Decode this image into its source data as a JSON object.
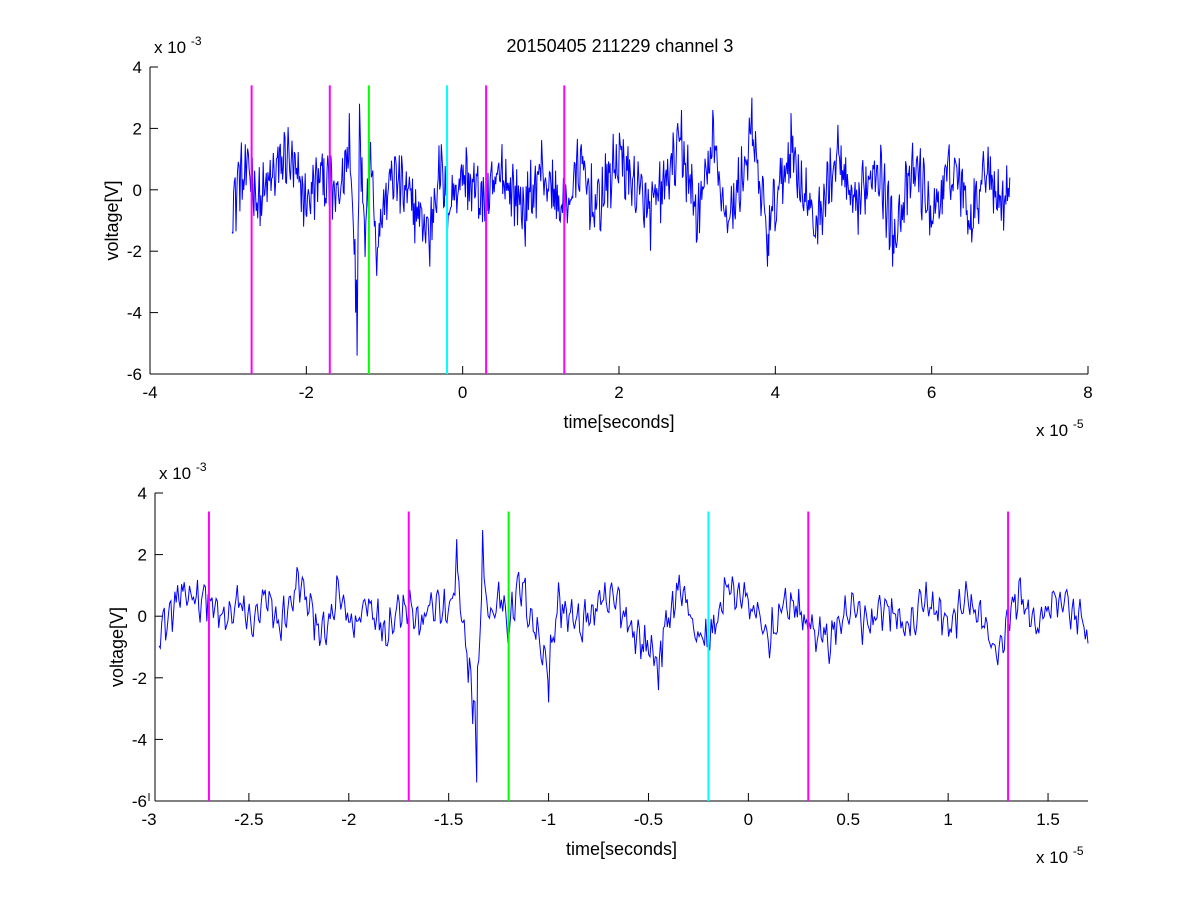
{
  "title": "20150405 211229 channel 3",
  "colors": {
    "signal": "#0000ff",
    "magenta": "#ff00ff",
    "green": "#00ff00",
    "cyan": "#00ffff",
    "axes": "#000000"
  },
  "chart_data": [
    {
      "type": "line",
      "xlabel": "time[seconds]",
      "ylabel": "voltage[V]",
      "x_exponent_label": "x 10",
      "x_exponent": "-5",
      "y_exponent_label": "x 10",
      "y_exponent": "-3",
      "x_scale": 1e-05,
      "y_scale": 0.001,
      "xlim": [
        -4,
        8
      ],
      "ylim": [
        -6,
        4
      ],
      "x_ticks": [
        -4,
        -2,
        0,
        2,
        4,
        6,
        8
      ],
      "x_tick_labels": [
        "-4",
        "-2",
        "0",
        "2",
        "4",
        "6",
        "8"
      ],
      "y_ticks": [
        -6,
        -4,
        -2,
        0,
        2,
        4
      ],
      "y_tick_labels": [
        "-6",
        "-4",
        "-2",
        "0",
        "2",
        "4"
      ],
      "grid": false,
      "signal_range": [
        -2.95,
        7.0
      ],
      "vertical_markers": [
        {
          "x": -2.7,
          "color": "magenta",
          "y_top": 3.4
        },
        {
          "x": -1.7,
          "color": "magenta",
          "y_top": 3.4
        },
        {
          "x": -1.2,
          "color": "green",
          "y_top": 3.4
        },
        {
          "x": -0.2,
          "color": "cyan",
          "y_top": 3.4
        },
        {
          "x": 0.3,
          "color": "magenta",
          "y_top": 3.4
        },
        {
          "x": 1.3,
          "color": "magenta",
          "y_top": 3.4
        }
      ],
      "signal_anchors": [
        [
          -2.95,
          -0.5
        ],
        [
          -2.9,
          -0.6
        ],
        [
          -2.87,
          0.9
        ],
        [
          -2.8,
          0.5
        ],
        [
          -2.72,
          1.2
        ],
        [
          -2.6,
          -0.8
        ],
        [
          -2.4,
          1.0
        ],
        [
          -2.25,
          2.1
        ],
        [
          -2.0,
          -0.8
        ],
        [
          -1.8,
          1.0
        ],
        [
          -1.6,
          -0.7
        ],
        [
          -1.45,
          2.5
        ],
        [
          -1.4,
          -2.0
        ],
        [
          -1.37,
          -4.0
        ],
        [
          -1.35,
          -5.4
        ],
        [
          -1.32,
          2.8
        ],
        [
          -1.25,
          -2.0
        ],
        [
          -1.18,
          2.2
        ],
        [
          -1.1,
          -2.8
        ],
        [
          -0.9,
          1.0
        ],
        [
          -0.7,
          -0.5
        ],
        [
          -0.42,
          -2.5
        ],
        [
          -0.3,
          1.5
        ],
        [
          -0.2,
          -1.0
        ],
        [
          0.0,
          1.0
        ],
        [
          0.3,
          -0.9
        ],
        [
          0.5,
          1.0
        ],
        [
          0.8,
          -1.2
        ],
        [
          1.0,
          1.2
        ],
        [
          1.3,
          -1.4
        ],
        [
          1.5,
          1.5
        ],
        [
          1.7,
          -1.3
        ],
        [
          2.0,
          2.0
        ],
        [
          2.4,
          -1.5
        ],
        [
          2.8,
          2.6
        ],
        [
          3.0,
          -1.7
        ],
        [
          3.2,
          2.6
        ],
        [
          3.4,
          -2.0
        ],
        [
          3.7,
          3.0
        ],
        [
          3.9,
          -2.5
        ],
        [
          4.2,
          2.5
        ],
        [
          4.5,
          -2.2
        ],
        [
          4.8,
          2.0
        ],
        [
          5.0,
          -1.5
        ],
        [
          5.3,
          1.9
        ],
        [
          5.5,
          -2.5
        ],
        [
          5.8,
          1.3
        ],
        [
          6.0,
          -1.5
        ],
        [
          6.3,
          1.5
        ],
        [
          6.5,
          -1.7
        ],
        [
          6.7,
          1.7
        ],
        [
          6.9,
          -0.8
        ],
        [
          7.0,
          0.5
        ]
      ]
    },
    {
      "type": "line",
      "xlabel": "time[seconds]",
      "ylabel": "voltage[V]",
      "x_exponent_label": "x 10",
      "x_exponent": "-5",
      "y_exponent_label": "x 10",
      "y_exponent": "-3",
      "x_scale": 1e-05,
      "y_scale": 0.001,
      "xlim": [
        -2.97,
        1.7
      ],
      "ylim": [
        -6,
        4
      ],
      "x_ticks": [
        -3,
        -2.5,
        -2,
        -1.5,
        -1,
        -0.5,
        0,
        0.5,
        1,
        1.5
      ],
      "x_tick_labels": [
        "-3",
        "-2.5",
        "-2",
        "-1.5",
        "-1",
        "-0.5",
        "0",
        "0.5",
        "1",
        "1.5"
      ],
      "y_ticks": [
        -6,
        -4,
        -2,
        0,
        2,
        4
      ],
      "y_tick_labels": [
        "-6",
        "-4",
        "-2",
        "0",
        "2",
        "4"
      ],
      "grid": false,
      "signal_range": [
        -2.95,
        1.7
      ],
      "vertical_markers": [
        {
          "x": -2.7,
          "color": "magenta",
          "y_top": 3.4
        },
        {
          "x": -1.7,
          "color": "magenta",
          "y_top": 3.4
        },
        {
          "x": -1.2,
          "color": "green",
          "y_top": 3.4
        },
        {
          "x": -0.2,
          "color": "cyan",
          "y_top": 3.4
        },
        {
          "x": 0.3,
          "color": "magenta",
          "y_top": 3.4
        },
        {
          "x": 1.3,
          "color": "magenta",
          "y_top": 3.4
        }
      ],
      "signal_anchors": [
        [
          -2.95,
          -0.5
        ],
        [
          -2.93,
          -0.6
        ],
        [
          -2.88,
          0.3
        ],
        [
          -2.85,
          1.4
        ],
        [
          -2.82,
          0.8
        ],
        [
          -2.78,
          1.5
        ],
        [
          -2.75,
          1.0
        ],
        [
          -2.72,
          1.3
        ],
        [
          -2.68,
          0.5
        ],
        [
          -2.62,
          -0.4
        ],
        [
          -2.55,
          0.8
        ],
        [
          -2.48,
          -0.5
        ],
        [
          -2.42,
          1.0
        ],
        [
          -2.35,
          -0.6
        ],
        [
          -2.3,
          0.5
        ],
        [
          -2.25,
          2.1
        ],
        [
          -2.2,
          0.6
        ],
        [
          -2.12,
          -1.3
        ],
        [
          -2.05,
          1.4
        ],
        [
          -1.98,
          -0.7
        ],
        [
          -1.9,
          1.0
        ],
        [
          -1.82,
          -0.9
        ],
        [
          -1.75,
          0.5
        ],
        [
          -1.7,
          0.9
        ],
        [
          -1.65,
          -0.6
        ],
        [
          -1.58,
          0.8
        ],
        [
          -1.5,
          0.0
        ],
        [
          -1.46,
          2.5
        ],
        [
          -1.42,
          -1.8
        ],
        [
          -1.38,
          -3.5
        ],
        [
          -1.36,
          -5.4
        ],
        [
          -1.33,
          2.8
        ],
        [
          -1.29,
          -0.3
        ],
        [
          -1.24,
          1.4
        ],
        [
          -1.2,
          -0.4
        ],
        [
          -1.14,
          1.9
        ],
        [
          -1.06,
          -1.0
        ],
        [
          -1.0,
          -2.8
        ],
        [
          -0.95,
          0.8
        ],
        [
          -0.85,
          -0.6
        ],
        [
          -0.75,
          0.6
        ],
        [
          -0.66,
          1.0
        ],
        [
          -0.56,
          -1.2
        ],
        [
          -0.45,
          -2.4
        ],
        [
          -0.35,
          1.9
        ],
        [
          -0.25,
          -1.2
        ],
        [
          -0.2,
          -1.5
        ],
        [
          -0.1,
          1.8
        ],
        [
          0.0,
          0.8
        ],
        [
          0.1,
          -1.3
        ],
        [
          0.2,
          1.0
        ],
        [
          0.3,
          -0.5
        ],
        [
          0.4,
          -1.5
        ],
        [
          0.5,
          0.5
        ],
        [
          0.6,
          -0.6
        ],
        [
          0.7,
          0.4
        ],
        [
          0.8,
          -0.8
        ],
        [
          0.9,
          1.0
        ],
        [
          1.0,
          -0.6
        ],
        [
          1.1,
          1.0
        ],
        [
          1.25,
          -2.1
        ],
        [
          1.35,
          1.4
        ],
        [
          1.45,
          -0.6
        ],
        [
          1.55,
          1.0
        ],
        [
          1.65,
          0.0
        ],
        [
          1.7,
          -1.2
        ]
      ]
    }
  ]
}
